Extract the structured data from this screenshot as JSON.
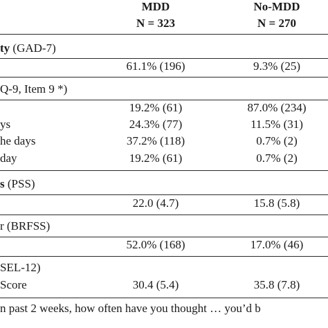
{
  "header": {
    "col1_title": "MDD",
    "col1_n": "N = 323",
    "col2_title": "No-MDD",
    "col2_n": "N = 270"
  },
  "sections": [
    {
      "title_bold": "ty",
      "title_rest": " (GAD-7)",
      "rows": [
        {
          "label": "",
          "v1": "61.1% (196)",
          "v2": "9.3% (25)"
        }
      ]
    },
    {
      "title_bold": "",
      "title_rest": "Q-9, Item 9 *)",
      "rows": [
        {
          "label": "",
          "v1": "19.2% (61)",
          "v2": "87.0% (234)"
        },
        {
          "label": "ys",
          "v1": "24.3% (77)",
          "v2": "11.5% (31)"
        },
        {
          "label": "he days",
          "v1": "37.2% (118)",
          "v2": "0.7% (2)"
        },
        {
          "label": " day",
          "v1": "19.2% (61)",
          "v2": "0.7% (2)"
        }
      ]
    },
    {
      "title_bold": "s",
      "title_rest": " (PSS)",
      "rows": [
        {
          "label": "",
          "v1": "22.0 (4.7)",
          "v2": "15.8 (5.8)"
        }
      ]
    },
    {
      "title_bold": "",
      "title_rest": "r (BRFSS)",
      "rows": [
        {
          "label": "",
          "v1": "52.0% (168)",
          "v2": "17.0% (46)"
        }
      ]
    },
    {
      "title_bold": "",
      "title_rest": "SEL-12)",
      "rows": [
        {
          "label": "Score",
          "v1": "30.4 (5.4)",
          "v2": "35.8 (7.8)"
        }
      ]
    }
  ],
  "footnote": "n past 2 weeks, how often have you thought … you’d b"
}
